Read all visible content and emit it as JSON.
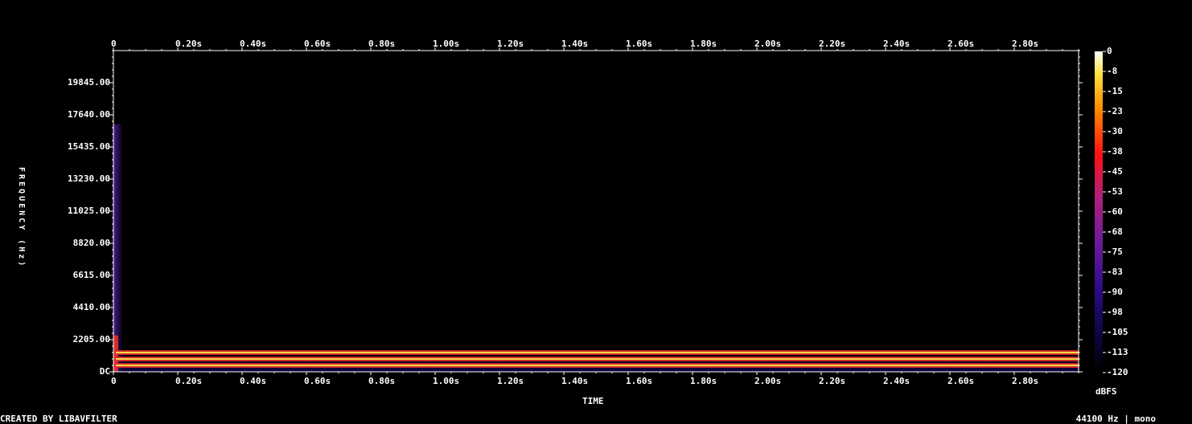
{
  "chart_data": {
    "type": "heatmap",
    "kind": "spectrogram",
    "x_axis": {
      "label": "TIME",
      "range_s": [
        0,
        3.0
      ],
      "ticks": [
        "0",
        "0.20s",
        "0.40s",
        "0.60s",
        "0.80s",
        "1.00s",
        "1.20s",
        "1.40s",
        "1.60s",
        "1.80s",
        "2.00s",
        "2.20s",
        "2.40s",
        "2.60s",
        "2.80s"
      ],
      "tick_values": [
        0,
        0.2,
        0.4,
        0.6,
        0.8,
        1.0,
        1.2,
        1.4,
        1.6,
        1.8,
        2.0,
        2.2,
        2.4,
        2.6,
        2.8
      ]
    },
    "y_axis": {
      "label": "FREQUENCY (Hz)",
      "range_hz": [
        0,
        22050
      ],
      "ticks": [
        "DC",
        "2205.00",
        "4410.00",
        "6615.00",
        "8820.00",
        "11025.00",
        "13230.00",
        "15435.00",
        "17640.00",
        "19845.00"
      ],
      "tick_values": [
        0,
        2205,
        4410,
        6615,
        8820,
        11025,
        13230,
        15435,
        17640,
        19845
      ]
    },
    "colorbar": {
      "label": "dBFS",
      "range_db": [
        -120,
        0
      ],
      "ticks": [
        "0",
        "-8",
        "-15",
        "-23",
        "-30",
        "-38",
        "-45",
        "-53",
        "-60",
        "-68",
        "-75",
        "-83",
        "-90",
        "-98",
        "-105",
        "-113",
        "-120"
      ]
    },
    "tones_hz": [
      440,
      880,
      1320
    ],
    "tones_level_db": -30,
    "noise_floor_db": -115
  },
  "footer": {
    "left": "CREATED BY LIBAVFILTER",
    "right": "44100 Hz | mono"
  },
  "colors": {
    "background": "#000000",
    "axis": "#ffffff",
    "tone_core": "#ffd84a",
    "tone_glow": "#e0302a",
    "noise": "#1a0a70"
  }
}
